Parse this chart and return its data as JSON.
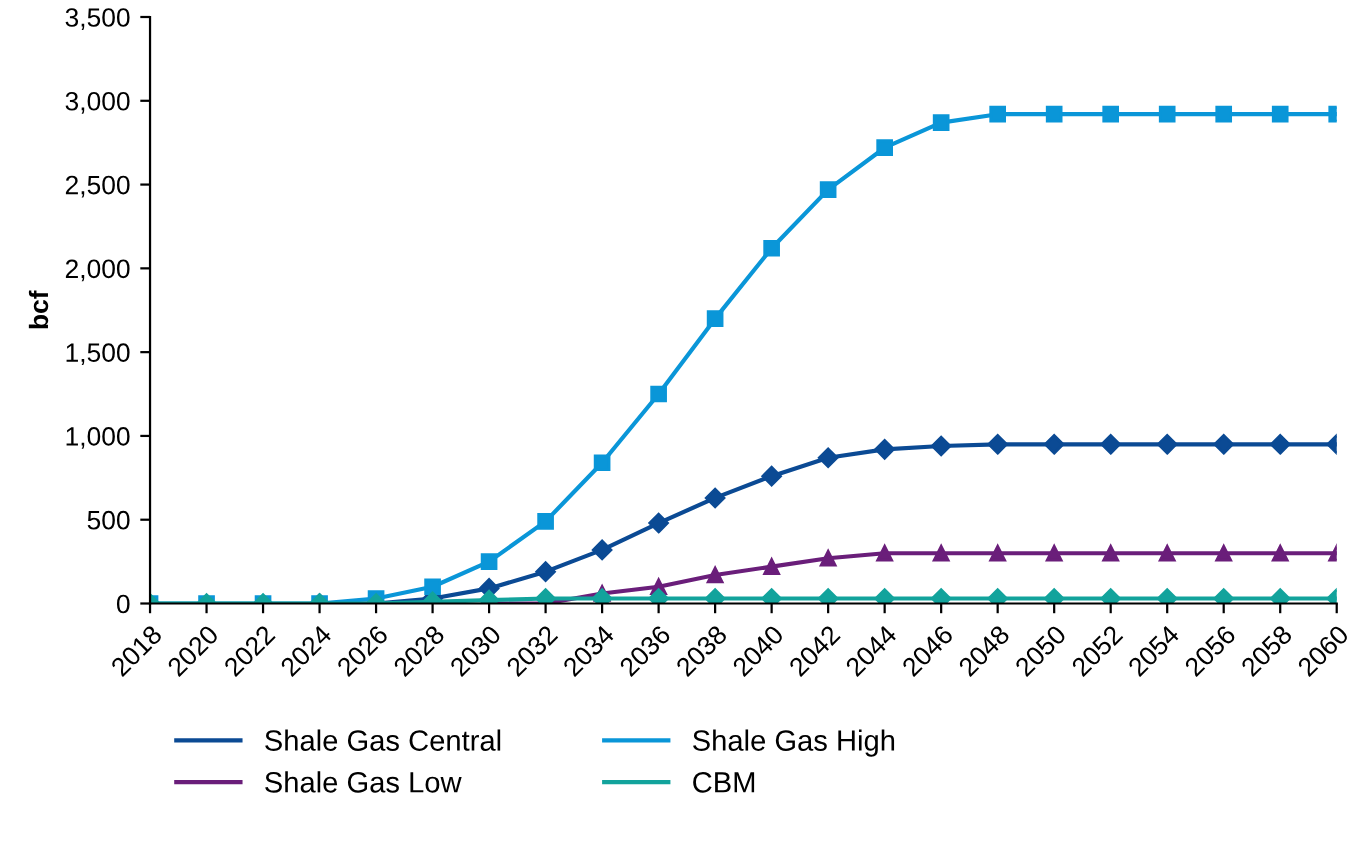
{
  "chart_data": {
    "type": "line",
    "ylabel": "bcf",
    "x": [
      2018,
      2020,
      2022,
      2024,
      2026,
      2028,
      2030,
      2032,
      2034,
      2036,
      2038,
      2040,
      2042,
      2044,
      2046,
      2048,
      2050,
      2052,
      2054,
      2056,
      2058,
      2060
    ],
    "xlim": [
      2018,
      2060
    ],
    "xticks": [
      2018,
      2020,
      2022,
      2024,
      2026,
      2028,
      2030,
      2032,
      2034,
      2036,
      2038,
      2040,
      2042,
      2044,
      2046,
      2048,
      2050,
      2052,
      2054,
      2056,
      2058,
      2060
    ],
    "ylim": [
      0,
      3500
    ],
    "yticks": [
      {
        "value": 0,
        "label": "0"
      },
      {
        "value": 500,
        "label": "500"
      },
      {
        "value": 1000,
        "label": "1,000"
      },
      {
        "value": 1500,
        "label": "1,500"
      },
      {
        "value": 2000,
        "label": "2,000"
      },
      {
        "value": 2500,
        "label": "2,500"
      },
      {
        "value": 3000,
        "label": "3,000"
      },
      {
        "value": 3500,
        "label": "3,500"
      }
    ],
    "grid": false,
    "legend": "bottom",
    "series": [
      {
        "name": "Shale Gas Central",
        "color": "#0b4a94",
        "marker": "diamond",
        "values": [
          null,
          null,
          null,
          0,
          0,
          30,
          90,
          190,
          320,
          480,
          630,
          760,
          870,
          920,
          940,
          950,
          950,
          950,
          950,
          950,
          950,
          950
        ]
      },
      {
        "name": "Shale Gas Low",
        "color": "#6a1e7a",
        "marker": "triangle",
        "values": [
          null,
          null,
          null,
          null,
          null,
          null,
          0,
          0,
          60,
          100,
          170,
          220,
          270,
          300,
          300,
          300,
          300,
          300,
          300,
          300,
          300,
          300
        ]
      },
      {
        "name": "Shale Gas High",
        "color": "#0a96d8",
        "marker": "square",
        "values": [
          0,
          0,
          0,
          0,
          30,
          100,
          250,
          490,
          840,
          1250,
          1700,
          2120,
          2470,
          2720,
          2870,
          2920,
          2920,
          2920,
          2920,
          2920,
          2920,
          2920
        ]
      },
      {
        "name": "CBM",
        "color": "#12a39c",
        "marker": "diamond",
        "values": [
          0,
          0,
          0,
          0,
          0,
          10,
          20,
          30,
          30,
          30,
          30,
          30,
          30,
          30,
          30,
          30,
          30,
          30,
          30,
          30,
          30,
          30
        ]
      }
    ]
  }
}
